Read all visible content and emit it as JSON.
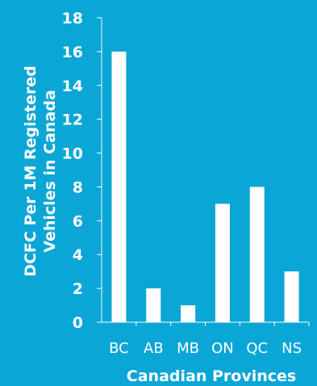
{
  "chart_data": {
    "type": "bar",
    "categories": [
      "BC",
      "AB",
      "MB",
      "ON",
      "QC",
      "NS"
    ],
    "values": [
      16,
      2,
      1,
      7,
      8,
      3
    ],
    "title": "",
    "xlabel": "Canadian Provinces",
    "ylabel_lines": [
      "DCFC Per 1M Registered",
      "Vehicles in Canada"
    ],
    "ylim": [
      0,
      18
    ],
    "yticks": [
      0,
      2,
      4,
      6,
      8,
      10,
      12,
      14,
      16,
      18
    ],
    "grid": false,
    "legend": "none",
    "colors": {
      "background": "#0aa6d6",
      "bar": "#ffffff",
      "axis": "#ffffff",
      "text": "#ffffff"
    }
  }
}
